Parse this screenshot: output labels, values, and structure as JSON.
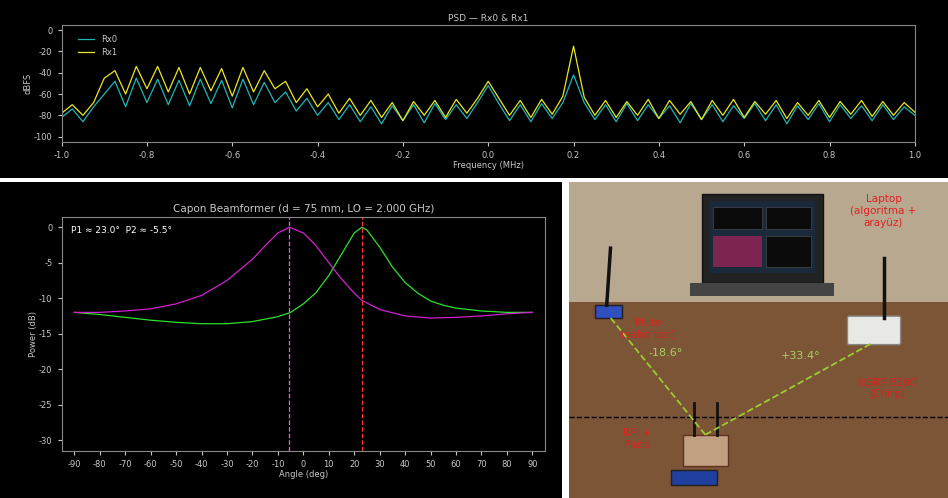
{
  "chart_data": [
    {
      "type": "line",
      "title": "PSD — Rx0 & Rx1",
      "x_label": "Frequency (MHz)",
      "y_label": "dBFS",
      "x": [
        -1.0,
        -0.975,
        -0.95,
        -0.925,
        -0.9,
        -0.875,
        -0.85,
        -0.825,
        -0.8,
        -0.775,
        -0.75,
        -0.725,
        -0.7,
        -0.675,
        -0.65,
        -0.625,
        -0.6,
        -0.575,
        -0.55,
        -0.525,
        -0.5,
        -0.475,
        -0.45,
        -0.425,
        -0.4,
        -0.375,
        -0.35,
        -0.325,
        -0.3,
        -0.275,
        -0.25,
        -0.225,
        -0.2,
        -0.175,
        -0.15,
        -0.125,
        -0.1,
        -0.075,
        -0.05,
        -0.025,
        0.0,
        0.025,
        0.05,
        0.075,
        0.1,
        0.125,
        0.15,
        0.175,
        0.2,
        0.225,
        0.25,
        0.275,
        0.3,
        0.325,
        0.35,
        0.375,
        0.4,
        0.425,
        0.45,
        0.475,
        0.5,
        0.525,
        0.55,
        0.575,
        0.6,
        0.625,
        0.65,
        0.675,
        0.7,
        0.725,
        0.75,
        0.775,
        0.8,
        0.825,
        0.85,
        0.875,
        0.9,
        0.925,
        0.95,
        0.975,
        1.0
      ],
      "series": [
        {
          "name": "Rx0",
          "color": "#1fb5b5",
          "line_style": "solid",
          "values": [
            -82,
            -74,
            -86,
            -72,
            -60,
            -48,
            -72,
            -45,
            -68,
            -46,
            -70,
            -47,
            -71,
            -46,
            -69,
            -47,
            -73,
            -46,
            -70,
            -49,
            -68,
            -58,
            -76,
            -64,
            -80,
            -68,
            -84,
            -70,
            -86,
            -72,
            -88,
            -71,
            -85,
            -70,
            -87,
            -69,
            -84,
            -70,
            -83,
            -68,
            -52,
            -69,
            -85,
            -70,
            -86,
            -69,
            -83,
            -68,
            -42,
            -68,
            -84,
            -70,
            -86,
            -69,
            -85,
            -70,
            -83,
            -71,
            -87,
            -69,
            -84,
            -70,
            -86,
            -71,
            -83,
            -69,
            -85,
            -70,
            -88,
            -71,
            -84,
            -69,
            -86,
            -70,
            -83,
            -71,
            -85,
            -70,
            -84,
            -72,
            -80
          ]
        },
        {
          "name": "Rx1",
          "color": "#e8e820",
          "line_style": "solid",
          "values": [
            -78,
            -70,
            -80,
            -68,
            -45,
            -38,
            -60,
            -34,
            -55,
            -34,
            -58,
            -35,
            -60,
            -35,
            -57,
            -36,
            -62,
            -35,
            -58,
            -38,
            -55,
            -48,
            -68,
            -55,
            -72,
            -60,
            -78,
            -64,
            -80,
            -66,
            -82,
            -68,
            -85,
            -67,
            -80,
            -66,
            -82,
            -65,
            -78,
            -64,
            -48,
            -64,
            -80,
            -66,
            -82,
            -65,
            -79,
            -62,
            -15,
            -63,
            -80,
            -66,
            -82,
            -67,
            -80,
            -65,
            -83,
            -66,
            -79,
            -67,
            -84,
            -66,
            -80,
            -65,
            -82,
            -67,
            -79,
            -66,
            -83,
            -68,
            -80,
            -66,
            -82,
            -67,
            -79,
            -66,
            -81,
            -67,
            -80,
            -68,
            -77
          ]
        }
      ],
      "xlim": [
        -1.0,
        1.0
      ],
      "xticks": [
        {
          "value": -1.0,
          "label": "-1.0"
        },
        {
          "value": -0.8,
          "label": "-0.8"
        },
        {
          "value": -0.6,
          "label": "-0.6"
        },
        {
          "value": -0.4,
          "label": "-0.4"
        },
        {
          "value": -0.2,
          "label": "-0.2"
        },
        {
          "value": 0.0,
          "label": "0.0"
        },
        {
          "value": 0.2,
          "label": "0.2"
        },
        {
          "value": 0.4,
          "label": "0.4"
        },
        {
          "value": 0.6,
          "label": "0.6"
        },
        {
          "value": 0.8,
          "label": "0.8"
        },
        {
          "value": 1.0,
          "label": "1.0"
        }
      ],
      "ylim": [
        -105,
        5
      ],
      "yticks": [
        0,
        -20,
        -40,
        -60,
        -80,
        -100
      ],
      "legend": "upper left",
      "grid": false
    },
    {
      "type": "line",
      "title": "Capon Beamformer (d = 75 mm, LO = 2.000 GHz)",
      "x_label": "Angle (deg)",
      "y_label": "Power (dB)",
      "series": [
        {
          "color": "#2ee02e",
          "line_style": "solid",
          "x": [
            -90,
            -80,
            -70,
            -60,
            -50,
            -40,
            -30,
            -20,
            -10,
            -5,
            0,
            5,
            10,
            15,
            20,
            23,
            25,
            30,
            35,
            40,
            45,
            50,
            55,
            60,
            70,
            80,
            90
          ],
          "values": [
            -12,
            -12.3,
            -12.7,
            -13.1,
            -13.4,
            -13.6,
            -13.6,
            -13.3,
            -12.6,
            -12.0,
            -10.8,
            -9.2,
            -6.8,
            -3.8,
            -0.8,
            0,
            -0.4,
            -2.8,
            -5.6,
            -7.8,
            -9.3,
            -10.4,
            -11.0,
            -11.4,
            -11.8,
            -12.0,
            -12
          ]
        },
        {
          "color": "#d020d0",
          "line_style": "solid",
          "x": [
            -90,
            -80,
            -70,
            -60,
            -50,
            -40,
            -30,
            -20,
            -15,
            -10,
            -5.5,
            0,
            5,
            10,
            15,
            20,
            23,
            30,
            40,
            50,
            60,
            70,
            80,
            90
          ],
          "values": [
            -12,
            -12,
            -11.8,
            -11.5,
            -10.8,
            -9.6,
            -7.5,
            -4.5,
            -2.6,
            -0.8,
            0,
            -0.8,
            -2.6,
            -5.0,
            -7.3,
            -9.3,
            -10.3,
            -11.6,
            -12.5,
            -12.8,
            -12.7,
            -12.5,
            -12.2,
            -12
          ]
        }
      ],
      "vlines": [
        {
          "x": 23.0,
          "color": "#ff3030",
          "line_style": "dashed"
        },
        {
          "x": -5.5,
          "color": "#e060e0",
          "line_style": "dashed"
        }
      ],
      "annotations": [
        {
          "text": "P1 ≈ 23.0°  P2 ≈ -5.5°"
        }
      ],
      "xlim": [
        -95,
        95
      ],
      "xticks": [
        -90,
        -80,
        -70,
        -60,
        -50,
        -40,
        -30,
        -20,
        -10,
        0,
        10,
        20,
        30,
        40,
        50,
        60,
        70,
        80,
        90
      ],
      "ylim": [
        -31.5,
        1.5
      ],
      "yticks": [
        0,
        -5,
        -10,
        -15,
        -20,
        -25,
        -30
      ],
      "grid": false
    }
  ],
  "photo": {
    "laptop": "Laptop\n(algoritma +\narayüz)",
    "pluto_tone": "Pluto\n(sabit ton)",
    "usrp": "USRP B200\n(Chirp)",
    "rpi": "RPi +\nPluto",
    "angle_left": "-18.6°",
    "angle_right": "+33.4°"
  }
}
